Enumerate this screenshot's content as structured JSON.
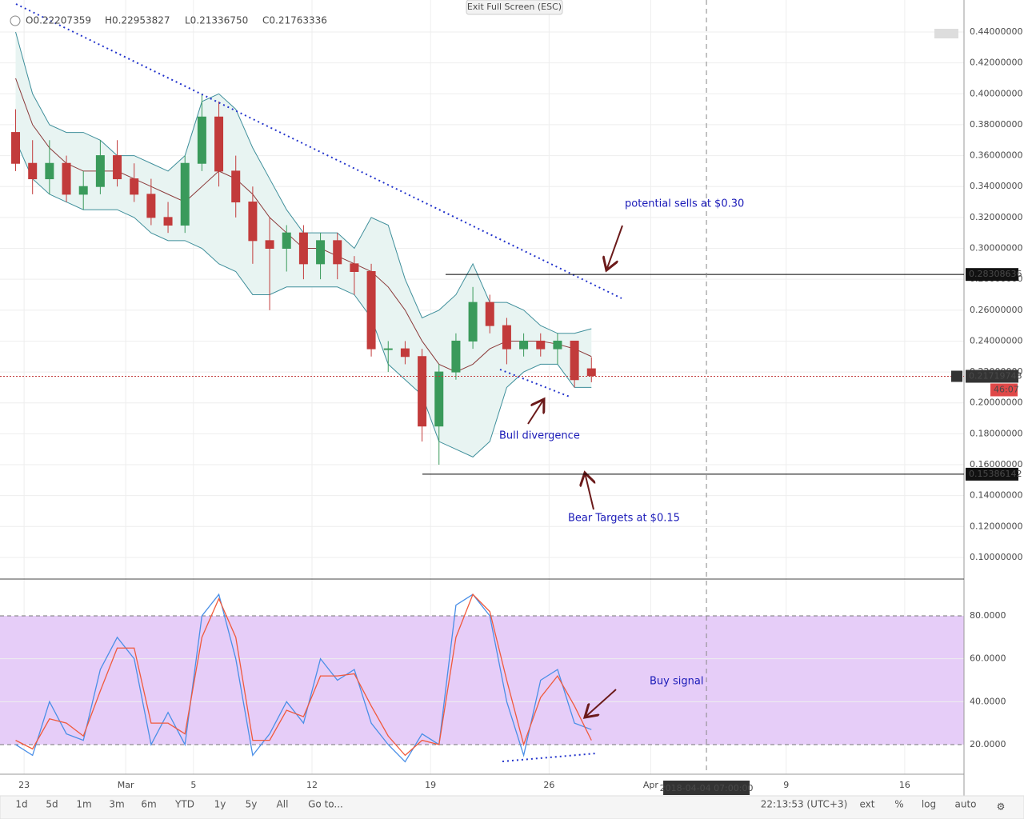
{
  "header": {
    "ohlc": [
      "O0.22207359",
      "H0.22953827",
      "L0.21336750",
      "C0.21763336"
    ],
    "exit": "Exit Full Screen (ESC)"
  },
  "toolbar": {
    "ranges": [
      "1d",
      "5d",
      "1m",
      "3m",
      "6m",
      "YTD",
      "1y",
      "5y",
      "All"
    ],
    "goto": "Go to...",
    "clock": "22:13:53 (UTC+3)",
    "options": [
      "ext",
      "%",
      "log",
      "auto"
    ]
  },
  "chart_data": [
    {
      "type": "candlestick",
      "x": [
        "2018-02-22",
        "2018-02-23",
        "2018-02-24",
        "2018-02-25",
        "2018-02-26",
        "2018-02-27",
        "2018-02-28",
        "2018-03-01",
        "2018-03-02",
        "2018-03-03",
        "2018-03-04",
        "2018-03-05",
        "2018-03-06",
        "2018-03-07",
        "2018-03-08",
        "2018-03-09",
        "2018-03-10",
        "2018-03-11",
        "2018-03-12",
        "2018-03-13",
        "2018-03-14",
        "2018-03-15",
        "2018-03-16",
        "2018-03-17",
        "2018-03-18",
        "2018-03-19",
        "2018-03-20",
        "2018-03-21",
        "2018-03-22",
        "2018-03-23",
        "2018-03-24",
        "2018-03-25",
        "2018-03-26",
        "2018-03-27",
        "2018-03-28"
      ],
      "open": [
        0.375,
        0.355,
        0.345,
        0.355,
        0.335,
        0.34,
        0.36,
        0.345,
        0.335,
        0.32,
        0.315,
        0.355,
        0.385,
        0.35,
        0.33,
        0.305,
        0.3,
        0.31,
        0.29,
        0.305,
        0.29,
        0.285,
        0.235,
        0.235,
        0.23,
        0.185,
        0.22,
        0.24,
        0.265,
        0.25,
        0.235,
        0.24,
        0.235,
        0.24,
        0.22207359
      ],
      "high": [
        0.39,
        0.37,
        0.37,
        0.36,
        0.35,
        0.37,
        0.37,
        0.355,
        0.345,
        0.33,
        0.36,
        0.4,
        0.395,
        0.36,
        0.34,
        0.32,
        0.315,
        0.315,
        0.31,
        0.31,
        0.295,
        0.29,
        0.24,
        0.24,
        0.235,
        0.225,
        0.245,
        0.275,
        0.27,
        0.255,
        0.245,
        0.245,
        0.245,
        0.24,
        0.22953827
      ],
      "low": [
        0.35,
        0.335,
        0.335,
        0.33,
        0.325,
        0.335,
        0.34,
        0.33,
        0.315,
        0.31,
        0.31,
        0.35,
        0.34,
        0.32,
        0.29,
        0.26,
        0.285,
        0.28,
        0.28,
        0.28,
        0.27,
        0.23,
        0.22,
        0.225,
        0.175,
        0.16,
        0.215,
        0.235,
        0.245,
        0.225,
        0.23,
        0.23,
        0.225,
        0.21,
        0.2133675
      ],
      "close": [
        0.355,
        0.345,
        0.355,
        0.335,
        0.34,
        0.36,
        0.345,
        0.335,
        0.32,
        0.315,
        0.355,
        0.385,
        0.35,
        0.33,
        0.305,
        0.3,
        0.31,
        0.29,
        0.305,
        0.29,
        0.285,
        0.235,
        0.235,
        0.23,
        0.185,
        0.22,
        0.24,
        0.265,
        0.25,
        0.235,
        0.24,
        0.235,
        0.24,
        0.215,
        0.21763336
      ],
      "bands": {
        "upper": [
          0.44,
          0.4,
          0.38,
          0.375,
          0.375,
          0.37,
          0.36,
          0.36,
          0.355,
          0.35,
          0.36,
          0.395,
          0.4,
          0.39,
          0.365,
          0.345,
          0.325,
          0.31,
          0.31,
          0.31,
          0.3,
          0.32,
          0.315,
          0.28,
          0.255,
          0.26,
          0.27,
          0.29,
          0.265,
          0.265,
          0.26,
          0.25,
          0.245,
          0.245,
          0.248
        ],
        "basis": [
          0.41,
          0.38,
          0.365,
          0.355,
          0.35,
          0.35,
          0.35,
          0.345,
          0.34,
          0.335,
          0.33,
          0.34,
          0.35,
          0.345,
          0.335,
          0.32,
          0.31,
          0.3,
          0.3,
          0.295,
          0.29,
          0.285,
          0.275,
          0.26,
          0.24,
          0.225,
          0.22,
          0.225,
          0.235,
          0.24,
          0.24,
          0.24,
          0.238,
          0.235,
          0.23
        ],
        "lower": [
          0.37,
          0.345,
          0.335,
          0.33,
          0.325,
          0.325,
          0.325,
          0.32,
          0.31,
          0.305,
          0.305,
          0.3,
          0.29,
          0.285,
          0.27,
          0.27,
          0.275,
          0.275,
          0.275,
          0.275,
          0.27,
          0.255,
          0.225,
          0.215,
          0.205,
          0.175,
          0.17,
          0.165,
          0.175,
          0.21,
          0.22,
          0.225,
          0.225,
          0.21,
          0.21
        ]
      },
      "up_color": "#3a9a5b",
      "down_color": "#c23b3b",
      "band_color": "#3f8f9b",
      "basis_color": "#8b3a3a",
      "band_fill": "#e8f4f2",
      "xlim": [
        "2018-02-21T22:55",
        "2018-04-19T12:00"
      ],
      "xticks": [
        {
          "value": "2018-02-23",
          "label": "23"
        },
        {
          "value": "2018-03-01",
          "label": "Mar"
        },
        {
          "value": "2018-03-05",
          "label": "5"
        },
        {
          "value": "2018-03-12",
          "label": "12"
        },
        {
          "value": "2018-03-19",
          "label": "19"
        },
        {
          "value": "2018-03-26",
          "label": "26"
        },
        {
          "value": "2018-04-01",
          "label": "Apr"
        },
        {
          "value": "2018-04-09",
          "label": "9"
        },
        {
          "value": "2018-04-16",
          "label": "16"
        }
      ],
      "ylim": [
        0.086,
        0.4607
      ],
      "yticks": [
        {
          "value": 0.1,
          "label": "0.10000000"
        },
        {
          "value": 0.12,
          "label": "0.12000000"
        },
        {
          "value": 0.14,
          "label": "0.14000000"
        },
        {
          "value": 0.16,
          "label": "0.16000000"
        },
        {
          "value": 0.18,
          "label": "0.18000000"
        },
        {
          "value": 0.2,
          "label": "0.20000000"
        },
        {
          "value": 0.22,
          "label": "0.22000000"
        },
        {
          "value": 0.24,
          "label": "0.24000000"
        },
        {
          "value": 0.26,
          "label": "0.26000000"
        },
        {
          "value": 0.28,
          "label": "0.28000000"
        },
        {
          "value": 0.3,
          "label": "0.30000000"
        },
        {
          "value": 0.32,
          "label": "0.32000000"
        },
        {
          "value": 0.34,
          "label": "0.34000000"
        },
        {
          "value": 0.36,
          "label": "0.36000000"
        },
        {
          "value": 0.38,
          "label": "0.38000000"
        },
        {
          "value": 0.4,
          "label": "0.40000000"
        },
        {
          "value": 0.42,
          "label": "0.42000000"
        },
        {
          "value": 0.44,
          "label": "0.44000000"
        }
      ],
      "grid": true,
      "levels": [
        {
          "value": 0.28308636,
          "label": "0.28308636"
        },
        {
          "value": 0.15386142,
          "label": "0.15386142"
        }
      ],
      "last": {
        "value": 0.21719748,
        "label": "0.21719748",
        "countdown": "46:07"
      },
      "crosshair": {
        "x": "2018-04-04T07:00",
        "label": "2018-04-04 07:00:00"
      },
      "annotations": [
        "potential sells at $0.30",
        "Bull divergence",
        "Bear Targets at $0.15"
      ]
    },
    {
      "type": "line",
      "x": [
        "2018-02-22",
        "2018-02-23",
        "2018-02-24",
        "2018-02-25",
        "2018-02-26",
        "2018-02-27",
        "2018-02-28",
        "2018-03-01",
        "2018-03-02",
        "2018-03-03",
        "2018-03-04",
        "2018-03-05",
        "2018-03-06",
        "2018-03-07",
        "2018-03-08",
        "2018-03-09",
        "2018-03-10",
        "2018-03-11",
        "2018-03-12",
        "2018-03-13",
        "2018-03-14",
        "2018-03-15",
        "2018-03-16",
        "2018-03-17",
        "2018-03-18",
        "2018-03-19",
        "2018-03-20",
        "2018-03-21",
        "2018-03-22",
        "2018-03-23",
        "2018-03-24",
        "2018-03-25",
        "2018-03-26",
        "2018-03-27",
        "2018-03-28"
      ],
      "series": [
        {
          "color": "#4a8fe7",
          "values": [
            20,
            15,
            40,
            25,
            22,
            55,
            70,
            60,
            20,
            35,
            20,
            80,
            90,
            60,
            15,
            25,
            40,
            30,
            60,
            50,
            55,
            30,
            20,
            12,
            25,
            20,
            85,
            90,
            80,
            40,
            15,
            50,
            55,
            30,
            27
          ]
        },
        {
          "color": "#f05a3c",
          "values": [
            22,
            18,
            32,
            30,
            24,
            45,
            65,
            65,
            30,
            30,
            25,
            70,
            88,
            70,
            22,
            22,
            36,
            33,
            52,
            52,
            53,
            38,
            24,
            15,
            22,
            20,
            70,
            90,
            82,
            50,
            20,
            42,
            52,
            38,
            22
          ]
        }
      ],
      "ylim": [
        6.2,
        96.4
      ],
      "yticks": [
        {
          "value": 20,
          "label": "20.0000"
        },
        {
          "value": 40,
          "label": "40.0000"
        },
        {
          "value": 60,
          "label": "60.0000"
        },
        {
          "value": 80,
          "label": "80.0000"
        }
      ],
      "band_fill": "#e6cdf8",
      "annotations": [
        "Buy signal"
      ]
    }
  ]
}
